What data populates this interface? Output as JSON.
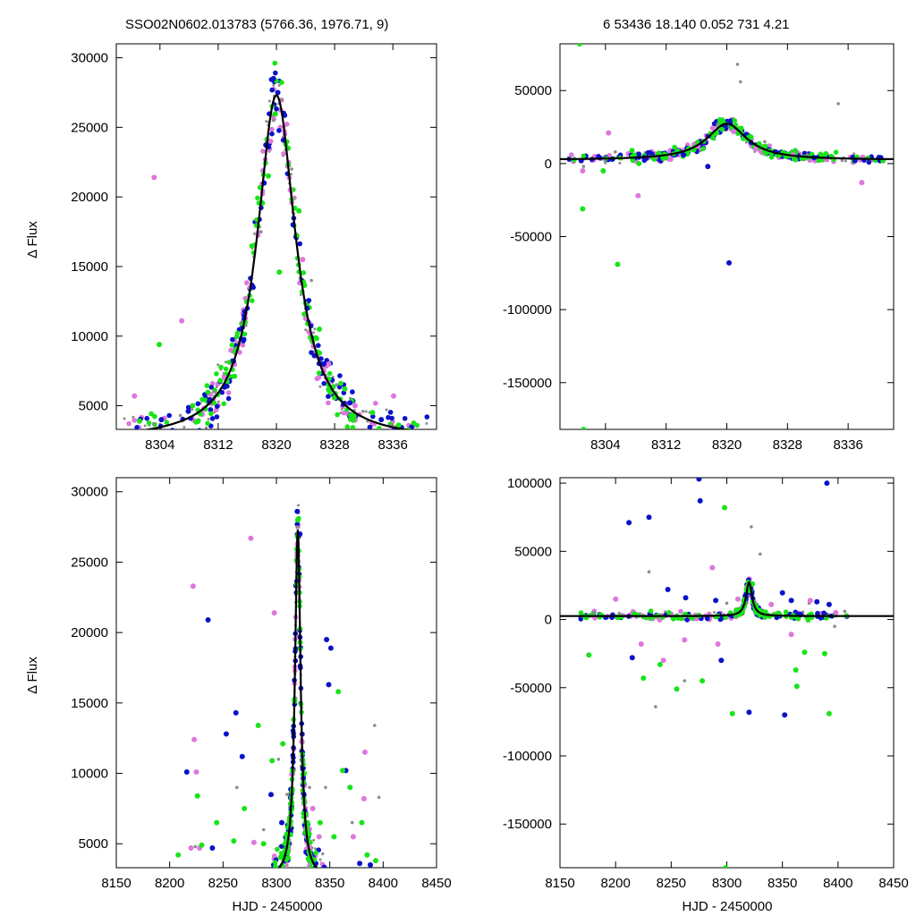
{
  "header": {
    "left": "SSO02N0602.013783 (5766.36, 1976.71,     9)",
    "right": "6   53436   18.140    0.052   731   4.21"
  },
  "colors": {
    "gray": "#8c8c8c",
    "violet": "#dd77dd",
    "blue": "#0a12c8",
    "green": "#18e418",
    "fit": "#000000"
  },
  "chart_data": [
    {
      "type": "scatter",
      "panel": "top-left",
      "title": "",
      "xlabel": "",
      "ylabel": "Δ Flux",
      "xlim": [
        8298,
        8342
      ],
      "ylim": [
        3300,
        31000
      ],
      "xticks": [
        8304,
        8312,
        8320,
        8328,
        8336
      ],
      "yticks": [
        5000,
        10000,
        15000,
        20000,
        25000,
        30000
      ],
      "grid": false,
      "model": {
        "form": "lorentzian",
        "t0": 8320.0,
        "peak": 24800,
        "baseline": 2500,
        "halfwidth": 3.2
      },
      "series": [
        {
          "color_key": "gray",
          "x": [
            8303.1,
            8306.8,
            8311.4,
            8315.2,
            8317.9,
            8319.6,
            8320.7,
            8322.1,
            8324.8,
            8328.3,
            8331.9,
            8335.6
          ],
          "y": [
            3700,
            4300,
            6000,
            11000,
            17500,
            25500,
            27000,
            22000,
            14000,
            6500,
            4600,
            3600
          ]
        },
        {
          "color_key": "violet",
          "x": [
            8300.5,
            8303.2,
            8307.0,
            8312.9,
            8316.4,
            8319.2,
            8321.9,
            8323.6,
            8327.2,
            8330.8,
            8336.1
          ],
          "y": [
            5700,
            21400,
            11100,
            7000,
            13500,
            24000,
            20500,
            15500,
            8000,
            5000,
            5700
          ]
        },
        {
          "color_key": "blue",
          "x": [
            8304.2,
            8307.9,
            8310.8,
            8314.1,
            8316.8,
            8318.3,
            8319.6,
            8320.2,
            8321.0,
            8322.3,
            8324.2,
            8326.5,
            8330.1,
            8334.4
          ],
          "y": [
            4000,
            4600,
            5300,
            8200,
            13500,
            21000,
            28500,
            27500,
            26000,
            18000,
            12000,
            8000,
            5200,
            4000
          ]
        },
        {
          "color_key": "green",
          "x": [
            8301.2,
            8303.9,
            8308.5,
            8312.3,
            8315.7,
            8318.9,
            8320.4,
            8321.6,
            8323.1,
            8325.9,
            8329.4,
            8333.2,
            8336.8
          ],
          "y": [
            3900,
            9400,
            5000,
            6800,
            11000,
            21500,
            14600,
            23500,
            19000,
            10500,
            6200,
            4500,
            3600
          ]
        }
      ]
    },
    {
      "type": "scatter",
      "panel": "top-right",
      "title": "",
      "xlabel": "",
      "ylabel": "",
      "xlim": [
        8298,
        8342
      ],
      "ylim": [
        -182000,
        82000
      ],
      "xticks": [
        8304,
        8312,
        8320,
        8328,
        8336
      ],
      "yticks": [
        -150000,
        -100000,
        -50000,
        0,
        50000
      ],
      "grid": false,
      "model": {
        "form": "lorentzian",
        "t0": 8320.0,
        "peak": 24800,
        "baseline": 2500,
        "halfwidth": 3.2
      },
      "series": [
        {
          "color_key": "gray",
          "x": [
            8301.1,
            8305.3,
            8310.7,
            8315.9,
            8318.8,
            8321.4,
            8321.8,
            8325.0,
            8330.6,
            8334.7,
            8339.2
          ],
          "y": [
            -2000,
            8000,
            4000,
            12000,
            27000,
            68000,
            56000,
            15000,
            6000,
            41000,
            2000
          ]
        },
        {
          "color_key": "violet",
          "x": [
            8301.0,
            8304.4,
            8308.3,
            8312.6,
            8316.2,
            8320.9,
            8323.8,
            8328.7,
            8333.1,
            8337.8
          ],
          "y": [
            -5000,
            21000,
            -22000,
            3000,
            12000,
            22000,
            10000,
            6000,
            3000,
            -13000
          ]
        },
        {
          "color_key": "blue",
          "x": [
            8300.8,
            8304.9,
            8309.1,
            8314.3,
            8317.5,
            8319.8,
            8320.3,
            8322.6,
            8326.4,
            8331.5,
            8336.9,
            8340.2
          ],
          "y": [
            2000,
            3000,
            4000,
            6000,
            -2000,
            26000,
            -68000,
            20000,
            8000,
            4000,
            2000,
            2000
          ]
        },
        {
          "color_key": "green",
          "x": [
            8300.6,
            8301.0,
            8301.1,
            8303.7,
            8305.6,
            8307.5,
            8308.4,
            8311.9,
            8318.2,
            8322.9,
            8327.8,
            8334.1,
            8340.6
          ],
          "y": [
            82000,
            -31000,
            -182000,
            -5000,
            -69000,
            9000,
            0,
            5000,
            20000,
            18000,
            5000,
            3000,
            2000
          ]
        }
      ]
    },
    {
      "type": "scatter",
      "panel": "bottom-left",
      "title": "",
      "xlabel": "HJD - 2450000",
      "ylabel": "Δ Flux",
      "xlim": [
        8150,
        8450
      ],
      "ylim": [
        3300,
        31000
      ],
      "xticks": [
        8150,
        8200,
        8250,
        8300,
        8350,
        8400,
        8450
      ],
      "yticks": [
        5000,
        10000,
        15000,
        20000,
        25000,
        30000
      ],
      "grid": false,
      "model": {
        "form": "lorentzian",
        "t0": 8320.0,
        "peak": 24800,
        "baseline": 2500,
        "halfwidth": 3.2
      },
      "series": [
        {
          "color_key": "gray",
          "x": [
            8224,
            8263,
            8288,
            8302,
            8310,
            8319.5,
            8331,
            8346,
            8371,
            8392,
            8396
          ],
          "y": [
            4800,
            9000,
            6000,
            11000,
            8500,
            27500,
            9000,
            9000,
            6500,
            13400,
            8300
          ]
        },
        {
          "color_key": "violet",
          "x": [
            8220,
            8222,
            8223,
            8225,
            8228,
            8276,
            8279,
            8298,
            8320,
            8334,
            8340,
            8372,
            8382,
            8383
          ],
          "y": [
            4700,
            23300,
            12400,
            10100,
            4700,
            26700,
            5100,
            21400,
            25500,
            7500,
            5500,
            5500,
            8200,
            11500
          ]
        },
        {
          "color_key": "blue",
          "x": [
            8216,
            8236,
            8240,
            8253,
            8262,
            8268,
            8295,
            8305,
            8319.5,
            8322,
            8347,
            8349,
            8351,
            8365,
            8378,
            8388
          ],
          "y": [
            10100,
            20900,
            4700,
            12800,
            14300,
            11200,
            8500,
            6500,
            28600,
            27000,
            19500,
            16300,
            18900,
            10200,
            3600,
            3500
          ]
        },
        {
          "color_key": "green",
          "x": [
            8208,
            8226,
            8230,
            8244,
            8260,
            8270,
            8283,
            8288,
            8296,
            8306,
            8320,
            8326,
            8341,
            8354,
            8358,
            8362,
            8369,
            8380,
            8385,
            8393
          ],
          "y": [
            4200,
            8400,
            4900,
            6500,
            5200,
            7500,
            13400,
            5000,
            10900,
            12100,
            28000,
            10000,
            6500,
            5500,
            15800,
            10200,
            9000,
            6500,
            4200,
            3800
          ]
        }
      ]
    },
    {
      "type": "scatter",
      "panel": "bottom-right",
      "title": "",
      "xlabel": "HJD - 2450000",
      "ylabel": "",
      "xlim": [
        8150,
        8450
      ],
      "ylim": [
        -182000,
        104000
      ],
      "xticks": [
        8150,
        8200,
        8250,
        8300,
        8350,
        8400,
        8450
      ],
      "yticks": [
        -150000,
        -100000,
        -50000,
        0,
        50000,
        100000
      ],
      "grid": false,
      "model": {
        "form": "lorentzian",
        "t0": 8320.0,
        "peak": 24800,
        "baseline": 2500,
        "halfwidth": 3.2
      },
      "series": [
        {
          "color_key": "gray",
          "x": [
            8180,
            8230,
            8236,
            8262,
            8300,
            8322,
            8330,
            8374,
            8397,
            8406
          ],
          "y": [
            5000,
            35000,
            -64000,
            -45000,
            12000,
            68000,
            48000,
            12000,
            -5000,
            6000
          ]
        },
        {
          "color_key": "violet",
          "x": [
            8200,
            8223,
            8243,
            8262,
            8287,
            8292,
            8310,
            8340,
            8358,
            8375,
            8398
          ],
          "y": [
            15000,
            -18000,
            -30000,
            -15000,
            38000,
            -18000,
            15000,
            11000,
            -11000,
            14000,
            5000
          ]
        },
        {
          "color_key": "blue",
          "x": [
            8212,
            8215,
            8230,
            8247,
            8263,
            8275,
            8276,
            8290,
            8295,
            8320,
            8350,
            8352,
            8358,
            8381,
            8390,
            8392
          ],
          "y": [
            71000,
            -28000,
            75000,
            22000,
            16000,
            103000,
            87000,
            14000,
            -30000,
            -68000,
            19500,
            -70000,
            14000,
            13000,
            100000,
            11000
          ]
        },
        {
          "color_key": "green",
          "x": [
            8176,
            8225,
            8240,
            8255,
            8278,
            8298,
            8299,
            8305,
            8323,
            8362,
            8363,
            8370,
            8388,
            8392
          ],
          "y": [
            -26000,
            -43000,
            -33000,
            -51000,
            -45000,
            82000,
            -182000,
            -69000,
            26000,
            -37000,
            -49000,
            -24000,
            -25000,
            -69000
          ]
        }
      ]
    }
  ]
}
